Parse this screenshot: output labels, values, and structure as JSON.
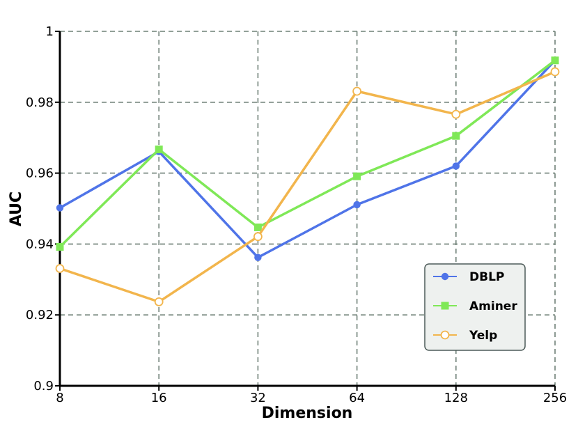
{
  "chart_data": {
    "type": "line",
    "xlabel": "Dimension",
    "ylabel": "AUC",
    "categories": [
      "8",
      "16",
      "32",
      "64",
      "128",
      "256"
    ],
    "yticks": [
      "0.9",
      "0.92",
      "0.94",
      "0.96",
      "0.98",
      "1"
    ],
    "ylim": [
      0.9,
      1.0
    ],
    "grid": true,
    "legend_position": "bottom-right",
    "series": [
      {
        "name": "DBLP",
        "color": "#4f74e8",
        "marker": "filled-circle",
        "values": [
          0.9502,
          0.9661,
          0.9362,
          0.9511,
          0.962,
          0.9918
        ]
      },
      {
        "name": "Aminer",
        "color": "#7fe857",
        "marker": "filled-square",
        "values": [
          0.9392,
          0.9667,
          0.9447,
          0.9591,
          0.9705,
          0.9918
        ]
      },
      {
        "name": "Yelp",
        "color": "#f2b54c",
        "marker": "hollow-circle",
        "values": [
          0.9331,
          0.9237,
          0.9421,
          0.9831,
          0.9766,
          0.9886
        ]
      }
    ]
  }
}
